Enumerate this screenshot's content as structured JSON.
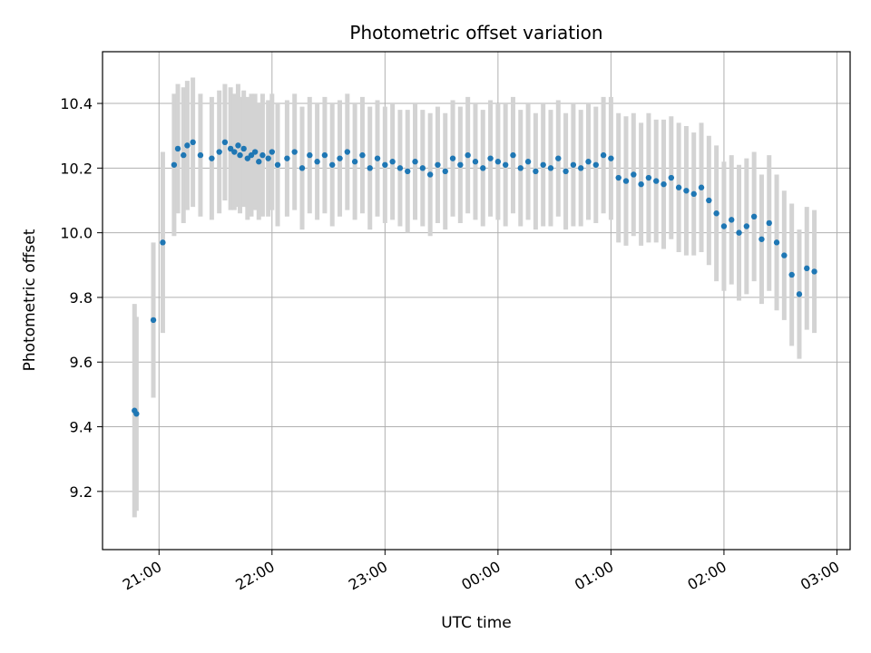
{
  "chart_data": {
    "type": "scatter",
    "title": "Photometric offset variation",
    "xlabel": "UTC time",
    "ylabel": "Photometric offset",
    "x_tick_labels": [
      "21:00",
      "22:00",
      "23:00",
      "00:00",
      "01:00",
      "02:00",
      "03:00"
    ],
    "y_tick_labels": [
      "9.2",
      "9.4",
      "9.6",
      "9.8",
      "10.0",
      "10.2",
      "10.4"
    ],
    "y_ticks": [
      9.2,
      9.4,
      9.6,
      9.8,
      10.0,
      10.2,
      10.4
    ],
    "xlim": [
      "20:30",
      "03:07"
    ],
    "ylim": [
      9.02,
      10.56
    ],
    "grid": true,
    "colors": {
      "points": "#1f77b4",
      "errorbars": "#d3d3d3",
      "grid": "#b0b0b0"
    },
    "x_unit": "UTC time (HH:MM)",
    "x": [
      "20:47",
      "20:48",
      "20:57",
      "21:02",
      "21:08",
      "21:10",
      "21:13",
      "21:15",
      "21:18",
      "21:22",
      "21:28",
      "21:32",
      "21:35",
      "21:38",
      "21:40",
      "21:42",
      "21:43",
      "21:45",
      "21:47",
      "21:49",
      "21:51",
      "21:53",
      "21:55",
      "21:58",
      "22:00",
      "22:03",
      "22:08",
      "22:12",
      "22:16",
      "22:20",
      "22:24",
      "22:28",
      "22:32",
      "22:36",
      "22:40",
      "22:44",
      "22:48",
      "22:52",
      "22:56",
      "23:00",
      "23:04",
      "23:08",
      "23:12",
      "23:16",
      "23:20",
      "23:24",
      "23:28",
      "23:32",
      "23:36",
      "23:40",
      "23:44",
      "23:48",
      "23:52",
      "23:56",
      "00:00",
      "00:04",
      "00:08",
      "00:12",
      "00:16",
      "00:20",
      "00:24",
      "00:28",
      "00:32",
      "00:36",
      "00:40",
      "00:44",
      "00:48",
      "00:52",
      "00:56",
      "01:00",
      "01:04",
      "01:08",
      "01:12",
      "01:16",
      "01:20",
      "01:24",
      "01:28",
      "01:32",
      "01:36",
      "01:40",
      "01:44",
      "01:48",
      "01:52",
      "01:56",
      "02:00",
      "02:04",
      "02:08",
      "02:12",
      "02:16",
      "02:20",
      "02:24",
      "02:28",
      "02:32",
      "02:36",
      "02:40",
      "02:44",
      "02:48"
    ],
    "y": [
      9.45,
      9.44,
      9.73,
      9.97,
      10.21,
      10.26,
      10.24,
      10.27,
      10.28,
      10.24,
      10.23,
      10.25,
      10.28,
      10.26,
      10.25,
      10.27,
      10.24,
      10.26,
      10.23,
      10.24,
      10.25,
      10.22,
      10.24,
      10.23,
      10.25,
      10.21,
      10.23,
      10.25,
      10.2,
      10.24,
      10.22,
      10.24,
      10.21,
      10.23,
      10.25,
      10.22,
      10.24,
      10.2,
      10.23,
      10.21,
      10.22,
      10.2,
      10.19,
      10.22,
      10.2,
      10.18,
      10.21,
      10.19,
      10.23,
      10.21,
      10.24,
      10.22,
      10.2,
      10.23,
      10.22,
      10.21,
      10.24,
      10.2,
      10.22,
      10.19,
      10.21,
      10.2,
      10.23,
      10.19,
      10.21,
      10.2,
      10.22,
      10.21,
      10.24,
      10.23,
      10.17,
      10.16,
      10.18,
      10.15,
      10.17,
      10.16,
      10.15,
      10.17,
      10.14,
      10.13,
      10.12,
      10.14,
      10.1,
      10.06,
      10.02,
      10.04,
      10.0,
      10.02,
      10.05,
      9.98,
      10.03,
      9.97,
      9.93,
      9.87,
      9.81,
      9.89,
      9.88
    ],
    "err": [
      0.33,
      0.3,
      0.24,
      0.28,
      0.22,
      0.2,
      0.21,
      0.2,
      0.2,
      0.19,
      0.19,
      0.19,
      0.18,
      0.19,
      0.18,
      0.19,
      0.18,
      0.18,
      0.19,
      0.19,
      0.18,
      0.18,
      0.19,
      0.18,
      0.18,
      0.19,
      0.18,
      0.18,
      0.19,
      0.18,
      0.18,
      0.18,
      0.19,
      0.18,
      0.18,
      0.18,
      0.18,
      0.19,
      0.18,
      0.18,
      0.18,
      0.18,
      0.19,
      0.18,
      0.18,
      0.19,
      0.18,
      0.18,
      0.18,
      0.18,
      0.18,
      0.18,
      0.18,
      0.18,
      0.18,
      0.19,
      0.18,
      0.18,
      0.18,
      0.18,
      0.19,
      0.18,
      0.18,
      0.18,
      0.19,
      0.18,
      0.18,
      0.18,
      0.18,
      0.19,
      0.2,
      0.2,
      0.19,
      0.19,
      0.2,
      0.19,
      0.2,
      0.19,
      0.2,
      0.2,
      0.19,
      0.2,
      0.2,
      0.21,
      0.2,
      0.2,
      0.21,
      0.21,
      0.2,
      0.2,
      0.21,
      0.21,
      0.2,
      0.22,
      0.2,
      0.19,
      0.19
    ]
  }
}
